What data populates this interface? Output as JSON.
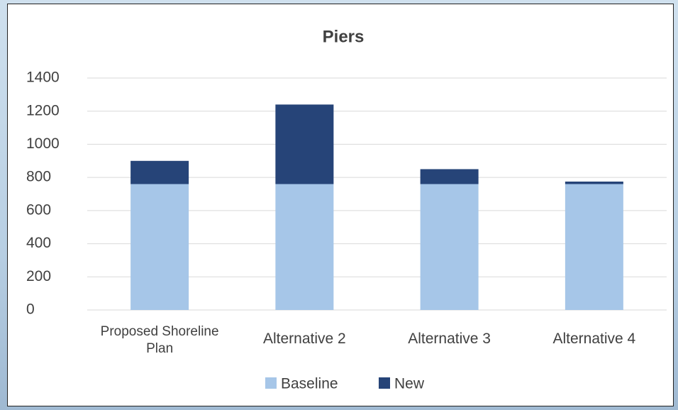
{
  "chart_data": {
    "type": "stacked_bar",
    "title": "Piers",
    "categories": [
      "Proposed Shoreline Plan",
      "Alternative 2",
      "Alternative 3",
      "Alternative 4"
    ],
    "series": [
      {
        "name": "Baseline",
        "color": "#a6c6e8",
        "values": [
          760,
          760,
          760,
          760
        ]
      },
      {
        "name": "New",
        "color": "#264478",
        "values": [
          140,
          480,
          90,
          15
        ]
      }
    ],
    "ylim": [
      0,
      1400
    ],
    "yticks": [
      0,
      200,
      400,
      600,
      800,
      1000,
      1200,
      1400
    ],
    "grid": true,
    "legend": "bottom"
  }
}
